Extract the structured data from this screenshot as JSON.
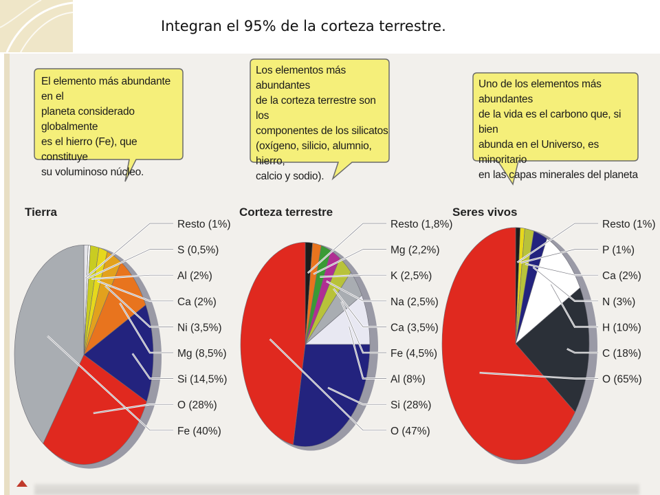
{
  "slide": {
    "title": "Integran el 95% de la corteza terrestre."
  },
  "bubbles": [
    {
      "lines": [
        "El elemento más abundante en el",
        "planeta considerado globalmente",
        "es el hierro (Fe), que constituye",
        "su voluminoso núcleo."
      ]
    },
    {
      "lines": [
        "Los elementos más abundantes",
        "de la corteza terrestre son los",
        "componentes de los silicatos",
        "(oxígeno, silicio, alumnio, hierro,",
        "calcio y sodio)."
      ]
    },
    {
      "lines": [
        "Uno de los elementos más abundantes",
        "de la vida es el carbono que, si bien",
        "abunda en el Universo, es minoritario",
        "en las capas minerales del planeta"
      ]
    }
  ],
  "colors": {
    "bubble_fill": "#f5ef7a",
    "bubble_stroke": "#6a6a6a",
    "leader": "#ffffff"
  },
  "chart_data": [
    {
      "type": "pie",
      "title": "Tierra",
      "slices": [
        {
          "label": "Resto (1%)",
          "name": "Resto",
          "value": 1,
          "color": "#e6e6ea"
        },
        {
          "label": "S (0,5%)",
          "name": "S",
          "value": 0.5,
          "color": "#ffffff"
        },
        {
          "label": "Al (2%)",
          "name": "Al",
          "value": 2,
          "color": "#c9cc22"
        },
        {
          "label": "Ca (2%)",
          "name": "Ca",
          "value": 2,
          "color": "#e6d81c"
        },
        {
          "label": "Ni (3,5%)",
          "name": "Ni",
          "value": 3.5,
          "color": "#e2a11d"
        },
        {
          "label": "Mg (8,5%)",
          "name": "Mg",
          "value": 8.5,
          "color": "#e8741e"
        },
        {
          "label": "Si (14,5%)",
          "name": "Si",
          "value": 14.5,
          "color": "#23237e"
        },
        {
          "label": "O (28%)",
          "name": "O",
          "value": 28,
          "color": "#e0291f"
        },
        {
          "label": "Fe (40%)",
          "name": "Fe",
          "value": 40,
          "color": "#a9adb2"
        }
      ]
    },
    {
      "type": "pie",
      "title": "Corteza terrestre",
      "slices": [
        {
          "label": "Resto (1,8%)",
          "name": "Resto",
          "value": 1.8,
          "color": "#1c1c1c"
        },
        {
          "label": "Mg (2,2%)",
          "name": "Mg",
          "value": 2.2,
          "color": "#e8741e"
        },
        {
          "label": "K (2,5%)",
          "name": "K",
          "value": 2.5,
          "color": "#3a9a35"
        },
        {
          "label": "Na (2,5%)",
          "name": "Na",
          "value": 2.5,
          "color": "#b02e93"
        },
        {
          "label": "Ca (3,5%)",
          "name": "Ca",
          "value": 3.5,
          "color": "#b8c23a"
        },
        {
          "label": "Fe (4,5%)",
          "name": "Fe",
          "value": 4.5,
          "color": "#a9adb2"
        },
        {
          "label": "Al (8%)",
          "name": "Al",
          "value": 8,
          "color": "#e8e8f2"
        },
        {
          "label": "Si (28%)",
          "name": "Si",
          "value": 28,
          "color": "#23237e"
        },
        {
          "label": "O (47%)",
          "name": "O",
          "value": 47,
          "color": "#e0291f"
        }
      ]
    },
    {
      "type": "pie",
      "title": "Seres vivos",
      "slices": [
        {
          "label": "Resto (1%)",
          "name": "Resto",
          "value": 1,
          "color": "#1c1c1c"
        },
        {
          "label": "P (1%)",
          "name": "P",
          "value": 1,
          "color": "#e6d81c"
        },
        {
          "label": "Ca (2%)",
          "name": "Ca",
          "value": 2,
          "color": "#b8c23a"
        },
        {
          "label": "N (3%)",
          "name": "N",
          "value": 3,
          "color": "#23237e"
        },
        {
          "label": "H (10%)",
          "name": "H",
          "value": 10,
          "color": "#ffffff"
        },
        {
          "label": "C (18%)",
          "name": "C",
          "value": 18,
          "color": "#2b3038"
        },
        {
          "label": "O (65%)",
          "name": "O",
          "value": 65,
          "color": "#e0291f"
        }
      ]
    }
  ]
}
